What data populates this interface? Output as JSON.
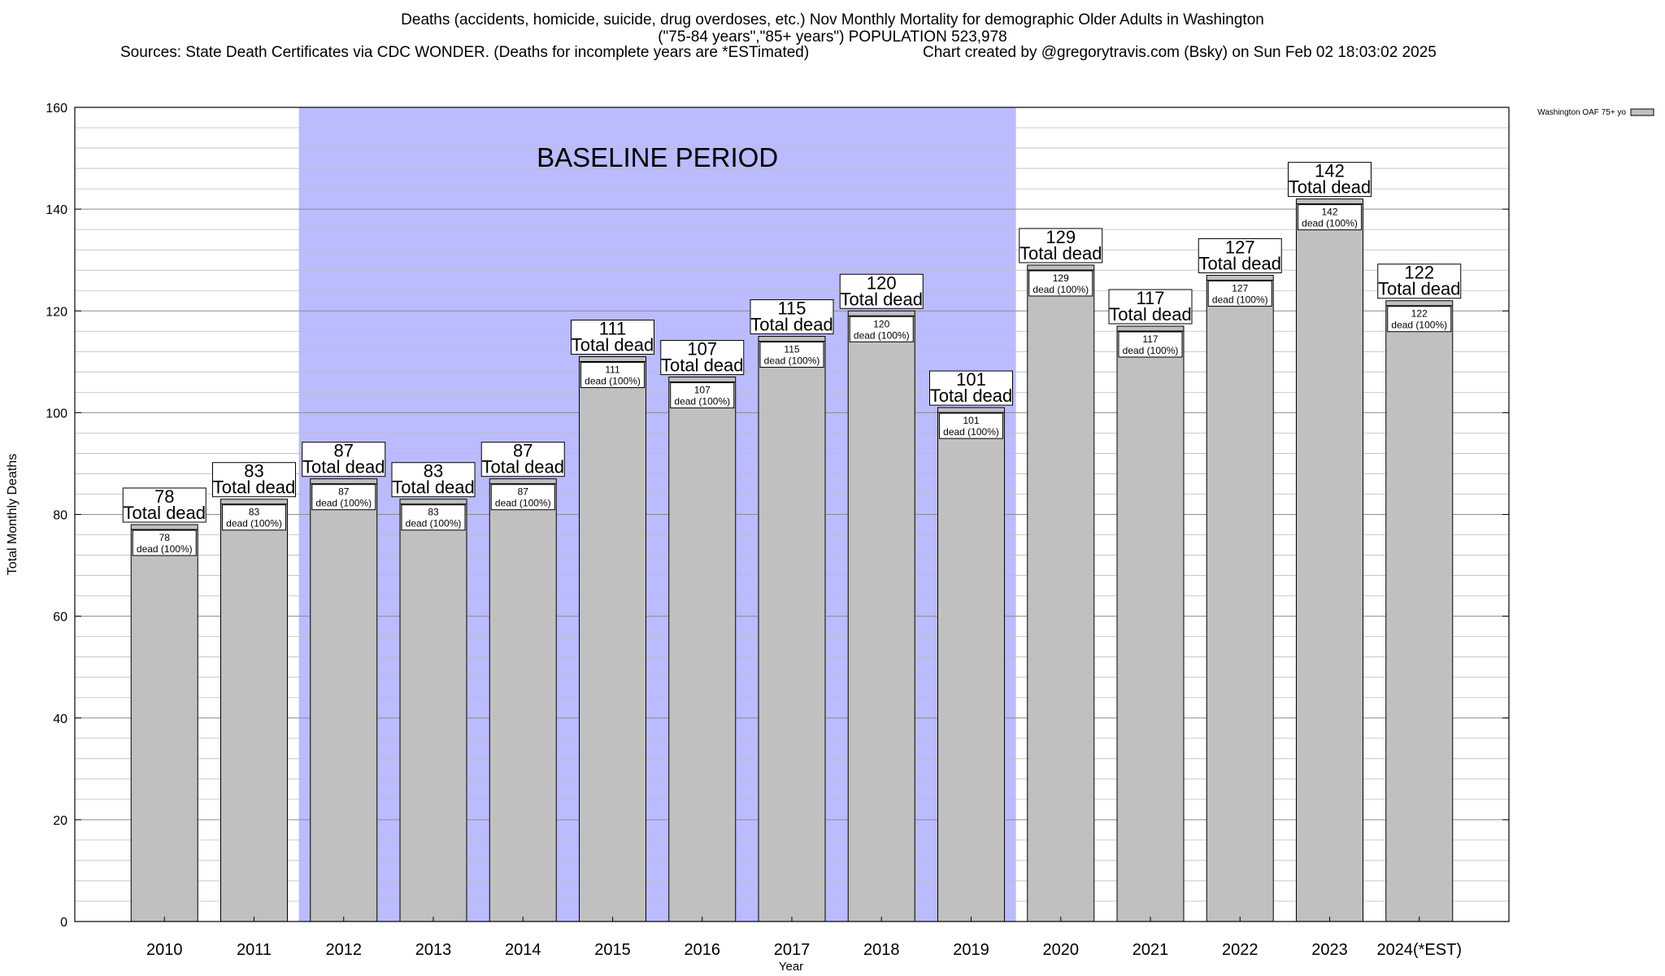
{
  "title": {
    "line1": "Deaths (accidents, homicide, suicide, drug overdoses, etc.) Nov Monthly Mortality for demographic Older Adults in Washington",
    "line2": "(\"75-84 years\",\"85+ years\") POPULATION 523,978",
    "sources": "Sources: State Death Certificates via CDC WONDER. (Deaths for incomplete years are *ESTimated)",
    "credit": "Chart created by @gregorytravis.com (Bsky) on Sun Feb 02 18:03:02 2025"
  },
  "chart_data": {
    "type": "bar",
    "title": "Deaths (accidents, homicide, suicide, drug overdoses, etc.) Nov Monthly Mortality for demographic Older Adults in Washington",
    "xlabel": "Year",
    "ylabel": "Total Monthly Deaths",
    "ylim": [
      0,
      160
    ],
    "yticks": [
      "0",
      "20",
      "40",
      "60",
      "80",
      "100",
      "120",
      "140",
      "160"
    ],
    "grid": true,
    "legend_position": "top-right",
    "categories": [
      "2010",
      "2011",
      "2012",
      "2013",
      "2014",
      "2015",
      "2016",
      "2017",
      "2018",
      "2019",
      "2020",
      "2021",
      "2022",
      "2023",
      "2024(*EST)"
    ],
    "series": [
      {
        "name": "Washington OAF 75+ yo",
        "values": [
          78,
          83,
          87,
          83,
          87,
          111,
          107,
          115,
          120,
          101,
          129,
          117,
          127,
          142,
          122
        ]
      }
    ],
    "total_label": "Total dead",
    "segment_label_suffix": "dead (100%)",
    "baseline": {
      "label": "BASELINE PERIOD",
      "start": "2012",
      "end": "2019"
    },
    "colors": {
      "bar": "#c0c0c0",
      "baseline": "#bbbbff",
      "grid": "#a0a0a0"
    }
  }
}
